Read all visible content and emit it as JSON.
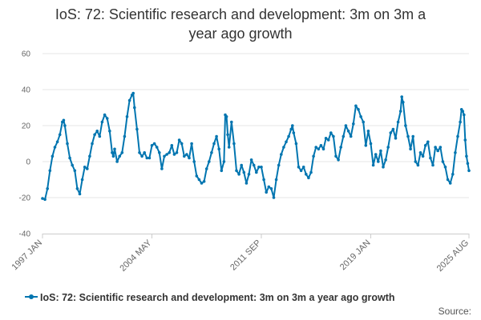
{
  "title_line1": "IoS: 72: Scientific research and development: 3m on 3m a",
  "title_line2": "year ago growth",
  "source_label": "Source:",
  "colors": {
    "series": "#0075b0",
    "grid": "#e6e6e6",
    "axis": "#cccccc"
  },
  "chart_data": {
    "type": "line",
    "title": "IoS: 72: Scientific research and development: 3m on 3m a year ago growth",
    "xlabel": "",
    "ylabel": "",
    "x_start": "1997 JAN",
    "x_end": "2025 AUG",
    "x_ticks": [
      "1997 JAN",
      "2004 MAY",
      "2011 SEP",
      "2019 JAN",
      "2025 AUG"
    ],
    "y_ticks": [
      60,
      40,
      20,
      0,
      -20,
      -40
    ],
    "ylim": [
      -40,
      60
    ],
    "grid": true,
    "legend_position": "bottom",
    "series": [
      {
        "name": "IoS: 72: Scientific research and development: 3m on 3m a year ago growth",
        "marker": "circle",
        "points": [
          [
            "1997-01",
            -20.5
          ],
          [
            "1997-03",
            -21
          ],
          [
            "1997-05",
            -15
          ],
          [
            "1997-07",
            -5
          ],
          [
            "1997-09",
            3
          ],
          [
            "1997-11",
            8
          ],
          [
            "1998-01",
            11
          ],
          [
            "1998-03",
            15
          ],
          [
            "1998-05",
            22
          ],
          [
            "1998-06",
            23
          ],
          [
            "1998-07",
            20
          ],
          [
            "1998-09",
            10
          ],
          [
            "1998-11",
            2
          ],
          [
            "1999-01",
            -2
          ],
          [
            "1999-03",
            -5
          ],
          [
            "1999-05",
            -15
          ],
          [
            "1999-07",
            -18
          ],
          [
            "1999-09",
            -10
          ],
          [
            "1999-11",
            -3
          ],
          [
            "2000-01",
            -4
          ],
          [
            "2000-03",
            3
          ],
          [
            "2000-05",
            10
          ],
          [
            "2000-07",
            15
          ],
          [
            "2000-09",
            17
          ],
          [
            "2000-11",
            14
          ],
          [
            "2001-01",
            22
          ],
          [
            "2001-03",
            26
          ],
          [
            "2001-05",
            24
          ],
          [
            "2001-07",
            17
          ],
          [
            "2001-09",
            5
          ],
          [
            "2001-10",
            3
          ],
          [
            "2001-11",
            7
          ],
          [
            "2002-01",
            0
          ],
          [
            "2002-03",
            3
          ],
          [
            "2002-05",
            5
          ],
          [
            "2002-07",
            14
          ],
          [
            "2002-09",
            25
          ],
          [
            "2002-11",
            34
          ],
          [
            "2003-01",
            37
          ],
          [
            "2003-02",
            38
          ],
          [
            "2003-03",
            30
          ],
          [
            "2003-05",
            18
          ],
          [
            "2003-07",
            5
          ],
          [
            "2003-09",
            3
          ],
          [
            "2003-11",
            5
          ],
          [
            "2004-01",
            2
          ],
          [
            "2004-03",
            2
          ],
          [
            "2004-05",
            9
          ],
          [
            "2004-07",
            10
          ],
          [
            "2004-09",
            8
          ],
          [
            "2004-11",
            5
          ],
          [
            "2005-01",
            -4
          ],
          [
            "2005-03",
            3
          ],
          [
            "2005-05",
            4
          ],
          [
            "2005-07",
            5
          ],
          [
            "2005-09",
            9
          ],
          [
            "2005-11",
            4
          ],
          [
            "2006-01",
            5
          ],
          [
            "2006-03",
            12
          ],
          [
            "2006-05",
            10
          ],
          [
            "2006-07",
            3
          ],
          [
            "2006-09",
            4
          ],
          [
            "2006-11",
            2
          ],
          [
            "2007-01",
            10
          ],
          [
            "2007-03",
            0
          ],
          [
            "2007-05",
            -8
          ],
          [
            "2007-07",
            -10
          ],
          [
            "2007-09",
            -12
          ],
          [
            "2007-11",
            -11
          ],
          [
            "2008-01",
            -4
          ],
          [
            "2008-03",
            0
          ],
          [
            "2008-05",
            5
          ],
          [
            "2008-07",
            10
          ],
          [
            "2008-09",
            14
          ],
          [
            "2008-11",
            7
          ],
          [
            "2009-01",
            -5
          ],
          [
            "2009-03",
            0
          ],
          [
            "2009-04",
            26
          ],
          [
            "2009-05",
            25
          ],
          [
            "2009-06",
            15
          ],
          [
            "2009-07",
            8
          ],
          [
            "2009-09",
            22
          ],
          [
            "2009-11",
            10
          ],
          [
            "2010-01",
            -5
          ],
          [
            "2010-03",
            -7
          ],
          [
            "2010-05",
            -2
          ],
          [
            "2010-07",
            -6
          ],
          [
            "2010-09",
            -12
          ],
          [
            "2010-11",
            -7
          ],
          [
            "2011-01",
            1
          ],
          [
            "2011-03",
            -2
          ],
          [
            "2011-05",
            -6
          ],
          [
            "2011-07",
            -3
          ],
          [
            "2011-09",
            -3
          ],
          [
            "2011-11",
            -10
          ],
          [
            "2012-01",
            -17
          ],
          [
            "2012-03",
            -14
          ],
          [
            "2012-05",
            -15
          ],
          [
            "2012-07",
            -20
          ],
          [
            "2012-09",
            -10
          ],
          [
            "2012-11",
            -2
          ],
          [
            "2013-01",
            4
          ],
          [
            "2013-03",
            8
          ],
          [
            "2013-05",
            11
          ],
          [
            "2013-07",
            14
          ],
          [
            "2013-09",
            18
          ],
          [
            "2013-10",
            20
          ],
          [
            "2013-11",
            16
          ],
          [
            "2014-01",
            10
          ],
          [
            "2014-03",
            -3
          ],
          [
            "2014-05",
            -5
          ],
          [
            "2014-07",
            -3
          ],
          [
            "2014-09",
            -7
          ],
          [
            "2014-11",
            -9
          ],
          [
            "2015-01",
            -6
          ],
          [
            "2015-03",
            3
          ],
          [
            "2015-05",
            8
          ],
          [
            "2015-07",
            7
          ],
          [
            "2015-09",
            9
          ],
          [
            "2015-11",
            7
          ],
          [
            "2016-01",
            13
          ],
          [
            "2016-03",
            12
          ],
          [
            "2016-05",
            16
          ],
          [
            "2016-07",
            14
          ],
          [
            "2016-09",
            3
          ],
          [
            "2016-11",
            1
          ],
          [
            "2017-01",
            8
          ],
          [
            "2017-03",
            14
          ],
          [
            "2017-05",
            20
          ],
          [
            "2017-07",
            17
          ],
          [
            "2017-09",
            14
          ],
          [
            "2017-11",
            21
          ],
          [
            "2018-01",
            31
          ],
          [
            "2018-03",
            29
          ],
          [
            "2018-05",
            25
          ],
          [
            "2018-07",
            22
          ],
          [
            "2018-09",
            9
          ],
          [
            "2018-11",
            17
          ],
          [
            "2019-01",
            10
          ],
          [
            "2019-03",
            -2
          ],
          [
            "2019-05",
            4
          ],
          [
            "2019-07",
            0
          ],
          [
            "2019-09",
            6
          ],
          [
            "2019-11",
            -3
          ],
          [
            "2020-01",
            1
          ],
          [
            "2020-03",
            8
          ],
          [
            "2020-05",
            16
          ],
          [
            "2020-07",
            18
          ],
          [
            "2020-09",
            13
          ],
          [
            "2020-11",
            22
          ],
          [
            "2021-01",
            28
          ],
          [
            "2021-02",
            36
          ],
          [
            "2021-03",
            33
          ],
          [
            "2021-05",
            20
          ],
          [
            "2021-07",
            14
          ],
          [
            "2021-09",
            7
          ],
          [
            "2021-11",
            14
          ],
          [
            "2022-01",
            0
          ],
          [
            "2022-03",
            -2
          ],
          [
            "2022-05",
            5
          ],
          [
            "2022-07",
            3
          ],
          [
            "2022-09",
            9
          ],
          [
            "2022-11",
            11
          ],
          [
            "2023-01",
            2
          ],
          [
            "2023-03",
            -2
          ],
          [
            "2023-05",
            8
          ],
          [
            "2023-07",
            6
          ],
          [
            "2023-09",
            8
          ],
          [
            "2023-11",
            0
          ],
          [
            "2024-01",
            -3
          ],
          [
            "2024-03",
            -10
          ],
          [
            "2024-05",
            -12
          ],
          [
            "2024-07",
            -7
          ],
          [
            "2024-09",
            5
          ],
          [
            "2024-11",
            14
          ],
          [
            "2025-01",
            22
          ],
          [
            "2025-02",
            29
          ],
          [
            "2025-03",
            28
          ],
          [
            "2025-04",
            26
          ],
          [
            "2025-05",
            12
          ],
          [
            "2025-06",
            3
          ],
          [
            "2025-07",
            -1
          ],
          [
            "2025-08",
            -5
          ]
        ]
      }
    ]
  }
}
